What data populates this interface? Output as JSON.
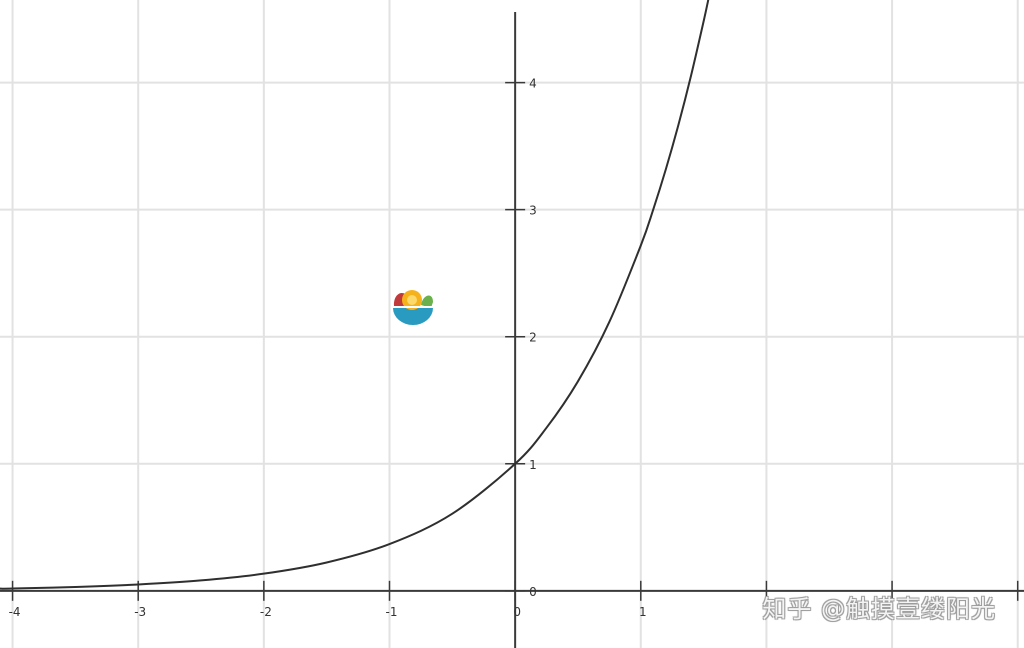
{
  "chart_data": {
    "type": "line",
    "title": "",
    "xlabel": "",
    "ylabel": "",
    "xlim": [
      -4.1,
      4.05
    ],
    "ylim": [
      -0.45,
      4.65
    ],
    "grid": true,
    "x_ticks": [
      -4,
      -3,
      -2,
      -1,
      0,
      1
    ],
    "x_tick_labels": [
      "-4",
      "-3",
      "-2",
      "-1",
      "0",
      "1"
    ],
    "y_ticks": [
      0,
      1,
      2,
      3,
      4
    ],
    "y_tick_labels": [
      "0",
      "1",
      "2",
      "3",
      "4"
    ],
    "series": [
      {
        "x": [
          -4.1,
          -4,
          -3.5,
          -3,
          -2.5,
          -2,
          -1.5,
          -1,
          -0.5,
          0,
          0.25,
          0.5,
          0.75,
          1,
          1.1,
          1.2,
          1.3,
          1.4,
          1.5,
          1.54
        ],
        "y": [
          0.017,
          0.018,
          0.03,
          0.05,
          0.082,
          0.135,
          0.223,
          0.368,
          0.607,
          1,
          1.284,
          1.649,
          2.117,
          2.718,
          3.004,
          3.32,
          3.669,
          4.055,
          4.482,
          4.665
        ]
      }
    ]
  },
  "watermark": {
    "text": "知乎 @触摸壹缕阳光"
  }
}
